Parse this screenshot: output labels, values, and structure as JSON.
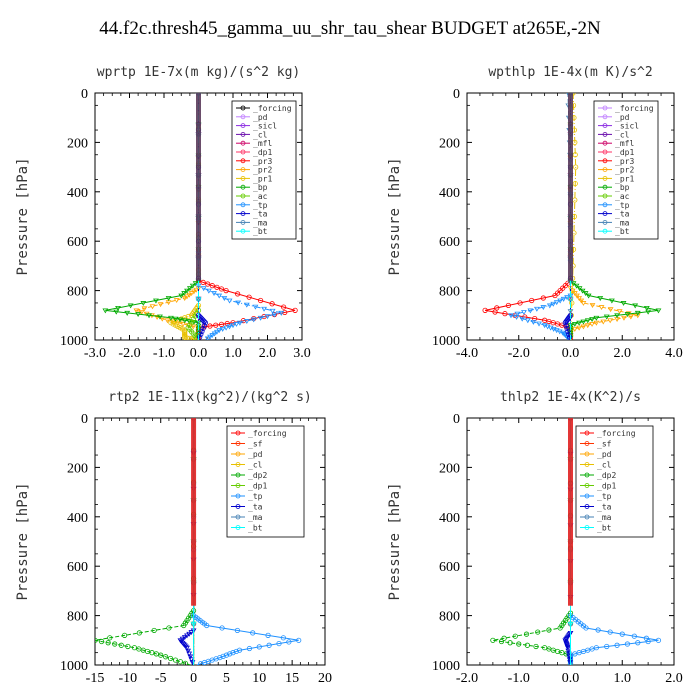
{
  "page_title": "44.f2c.thresh45_gamma_uu_shr_tau_shear  BUDGET at265E,-2N",
  "chart_data": [
    {
      "type": "line",
      "title": "wprtp  1E-7x(m kg)/(s^2 kg)",
      "ylabel": "Pressure [hPa]",
      "xlim": [
        -3.0,
        3.0
      ],
      "ylim": [
        1000,
        0
      ],
      "xticks": [
        -3.0,
        -2.0,
        -1.0,
        0.0,
        1.0,
        2.0,
        3.0
      ],
      "xtick_labels": [
        "-3.0",
        "-2.0",
        "-1.0",
        "0.0",
        "1.0",
        "2.0",
        "3.0"
      ],
      "yticks": [
        0,
        200,
        400,
        600,
        800,
        1000
      ],
      "ytick_labels": [
        "0",
        "200",
        "400",
        "600",
        "800",
        "1000"
      ],
      "legend_position": "top-right",
      "series": [
        {
          "name": "_forcing",
          "color": "#000000",
          "x": [
            0.0,
            0.0
          ],
          "y": [
            0,
            1000
          ]
        },
        {
          "name": "_pd",
          "color": "#c080ff",
          "x": [
            0.0,
            0.0
          ],
          "y": [
            0,
            1000
          ]
        },
        {
          "name": "_sicl",
          "color": "#8a2be2",
          "x": [
            0.0,
            0.0
          ],
          "y": [
            0,
            1000
          ]
        },
        {
          "name": "_cl",
          "color": "#6a0dad",
          "x": [
            0.0,
            0.0
          ],
          "y": [
            0,
            1000
          ]
        },
        {
          "name": "_mfl",
          "color": "#cc0066",
          "x": [
            0.0,
            0.0
          ],
          "y": [
            0,
            1000
          ]
        },
        {
          "name": "_dp1",
          "color": "#ff3366",
          "x": [
            0.0,
            0.0
          ],
          "y": [
            0,
            1000
          ]
        },
        {
          "name": "_pr3",
          "color": "#ff0000",
          "x": [
            0.0,
            0.0,
            0.8,
            2.8,
            1.0,
            0.0,
            0.0
          ],
          "y": [
            0,
            760,
            800,
            880,
            930,
            950,
            1000
          ]
        },
        {
          "name": "_pr2",
          "color": "#ffa500",
          "x": [
            0.0,
            0.0,
            -0.4,
            -1.8,
            -0.9,
            0.0,
            0.0
          ],
          "y": [
            0,
            790,
            830,
            880,
            920,
            950,
            1000
          ]
        },
        {
          "name": "_pr1",
          "color": "#e8c000",
          "x": [
            0.0,
            0.0,
            -0.2,
            -0.8,
            -0.4,
            -0.4,
            0.0
          ],
          "y": [
            0,
            860,
            900,
            930,
            960,
            990,
            1000
          ]
        },
        {
          "name": "_bp",
          "color": "#00aa00",
          "x": [
            0.0,
            0.0,
            -0.5,
            -2.7,
            -0.8,
            0.0,
            0.0
          ],
          "y": [
            0,
            760,
            820,
            880,
            910,
            930,
            1000
          ]
        },
        {
          "name": "_ac",
          "color": "#66cc00",
          "x": [
            0.0,
            0.0,
            -0.3,
            0.0
          ],
          "y": [
            0,
            880,
            950,
            1000
          ]
        },
        {
          "name": "_tp",
          "color": "#1e90ff",
          "x": [
            0.0,
            0.0,
            0.9,
            2.4,
            1.2,
            0.6,
            0.2
          ],
          "y": [
            0,
            780,
            840,
            890,
            930,
            960,
            1000
          ]
        },
        {
          "name": "_ta",
          "color": "#0000cc",
          "x": [
            0.0,
            0.0,
            0.2,
            0.0
          ],
          "y": [
            0,
            900,
            930,
            1000
          ]
        },
        {
          "name": "_ma",
          "color": "#4682b4",
          "x": [
            0.0,
            0.0
          ],
          "y": [
            0,
            1000
          ]
        },
        {
          "name": "_bt",
          "color": "#00ffff",
          "x": [
            0.0,
            0.0
          ],
          "y": [
            0,
            1000
          ]
        }
      ]
    },
    {
      "type": "line",
      "title": "wpthlp  1E-4x(m K)/s^2",
      "ylabel": "Pressure [hPa]",
      "xlim": [
        -4.0,
        4.0
      ],
      "ylim": [
        1000,
        0
      ],
      "xticks": [
        -4.0,
        -2.0,
        0.0,
        2.0,
        4.0
      ],
      "xtick_labels": [
        "-4.0",
        "-2.0",
        "0.0",
        "2.0",
        "4.0"
      ],
      "yticks": [
        0,
        200,
        400,
        600,
        800,
        1000
      ],
      "ytick_labels": [
        "0",
        "200",
        "400",
        "600",
        "800",
        "1000"
      ],
      "legend_position": "top-right",
      "series": [
        {
          "name": "_forcing",
          "color": "#c080ff",
          "x": [
            0.0,
            0.0
          ],
          "y": [
            0,
            1000
          ]
        },
        {
          "name": "_pd",
          "color": "#c080ff",
          "x": [
            0.0,
            0.0
          ],
          "y": [
            0,
            1000
          ]
        },
        {
          "name": "_sicl",
          "color": "#8a2be2",
          "x": [
            0.0,
            0.0
          ],
          "y": [
            0,
            1000
          ]
        },
        {
          "name": "_cl",
          "color": "#6a0dad",
          "x": [
            0.0,
            0.0
          ],
          "y": [
            0,
            1000
          ]
        },
        {
          "name": "_mfl",
          "color": "#cc0066",
          "x": [
            0.0,
            0.0
          ],
          "y": [
            0,
            1000
          ]
        },
        {
          "name": "_dp1",
          "color": "#ff3366",
          "x": [
            0.0,
            0.0
          ],
          "y": [
            0,
            1000
          ]
        },
        {
          "name": "_pr3",
          "color": "#ff0000",
          "x": [
            0.0,
            0.0,
            -0.6,
            -3.3,
            -1.0,
            0.0,
            0.0
          ],
          "y": [
            0,
            760,
            820,
            880,
            920,
            950,
            1000
          ]
        },
        {
          "name": "_pr2",
          "color": "#ffa500",
          "x": [
            0.0,
            0.0,
            0.5,
            2.6,
            1.0,
            0.0,
            0.0
          ],
          "y": [
            0,
            790,
            850,
            900,
            930,
            960,
            1000
          ]
        },
        {
          "name": "_pr1",
          "color": "#e8c000",
          "x": [
            0.1,
            0.2,
            0.1,
            0.0
          ],
          "y": [
            0,
            300,
            700,
            1000
          ]
        },
        {
          "name": "_bp",
          "color": "#00aa00",
          "x": [
            0.0,
            0.0,
            0.7,
            3.4,
            1.0,
            0.0,
            0.0
          ],
          "y": [
            0,
            760,
            820,
            880,
            910,
            940,
            1000
          ]
        },
        {
          "name": "_ac",
          "color": "#66cc00",
          "x": [
            0.0,
            0.0
          ],
          "y": [
            0,
            1000
          ]
        },
        {
          "name": "_tp",
          "color": "#1e90ff",
          "x": [
            0.0,
            0.0,
            -0.8,
            -2.3,
            -1.0,
            -0.3,
            0.0
          ],
          "y": [
            0,
            820,
            860,
            900,
            940,
            970,
            1000
          ]
        },
        {
          "name": "_ta",
          "color": "#0000cc",
          "x": [
            0.0,
            0.0,
            -0.2,
            0.0
          ],
          "y": [
            0,
            900,
            930,
            1000
          ]
        },
        {
          "name": "_ma",
          "color": "#4682b4",
          "x": [
            -0.1,
            0.0,
            0.0
          ],
          "y": [
            0,
            300,
            1000
          ]
        },
        {
          "name": "_bt",
          "color": "#00ffff",
          "x": [
            0.0,
            0.0
          ],
          "y": [
            0,
            1000
          ]
        }
      ]
    },
    {
      "type": "line",
      "title": "rtp2  1E-11x(kg^2)/(kg^2 s)",
      "ylabel": "Pressure [hPa]",
      "xlim": [
        -15,
        20
      ],
      "ylim": [
        1000,
        0
      ],
      "xticks": [
        -15,
        -10,
        -5,
        0,
        5,
        10,
        15,
        20
      ],
      "xtick_labels": [
        "-15",
        "-10",
        "-5",
        "0",
        "5",
        "10",
        "15",
        "20"
      ],
      "yticks": [
        0,
        200,
        400,
        600,
        800,
        1000
      ],
      "ytick_labels": [
        "0",
        "200",
        "400",
        "600",
        "800",
        "1000"
      ],
      "legend_position": "top-right",
      "series": [
        {
          "name": "_forcing",
          "color": "#ff0000",
          "x": [
            0.0,
            0.0
          ],
          "y": [
            0,
            1000
          ]
        },
        {
          "name": "_sf",
          "color": "#ff3300",
          "x": [
            0.0,
            0.0
          ],
          "y": [
            0,
            1000
          ]
        },
        {
          "name": "_pd",
          "color": "#ffa500",
          "x": [
            0.0,
            0.0
          ],
          "y": [
            0,
            1000
          ]
        },
        {
          "name": "_cl",
          "color": "#e8c000",
          "x": [
            0.0,
            0.0
          ],
          "y": [
            0,
            1000
          ]
        },
        {
          "name": "_dp2",
          "color": "#00aa00",
          "x": [
            0.0,
            0.0,
            -1.5,
            -15.0,
            -9.0,
            -5.0,
            -0.5
          ],
          "y": [
            0,
            780,
            840,
            900,
            930,
            960,
            1000
          ]
        },
        {
          "name": "_dp1",
          "color": "#66cc00",
          "x": [
            0.0,
            0.0
          ],
          "y": [
            0,
            1000
          ]
        },
        {
          "name": "_tp",
          "color": "#1e90ff",
          "x": [
            0.0,
            0.0,
            2.0,
            16.0,
            7.0,
            4.0,
            0.5
          ],
          "y": [
            0,
            800,
            840,
            900,
            940,
            970,
            1000
          ]
        },
        {
          "name": "_ta",
          "color": "#0000cc",
          "x": [
            0.0,
            0.0,
            -2.0,
            -1.0,
            0.0
          ],
          "y": [
            0,
            860,
            900,
            930,
            1000
          ]
        },
        {
          "name": "_ma",
          "color": "#4682b4",
          "x": [
            0.0,
            0.0
          ],
          "y": [
            0,
            1000
          ]
        },
        {
          "name": "_bt",
          "color": "#00ffff",
          "x": [
            0.0,
            0.0
          ],
          "y": [
            0,
            1000
          ]
        }
      ]
    },
    {
      "type": "line",
      "title": "thlp2  1E-4x(K^2)/s",
      "ylabel": "Pressure [hPa]",
      "xlim": [
        -2.0,
        2.0
      ],
      "ylim": [
        1000,
        0
      ],
      "xticks": [
        -2.0,
        -1.0,
        0.0,
        1.0,
        2.0
      ],
      "xtick_labels": [
        "-2.0",
        "-1.0",
        "0.0",
        "1.0",
        "2.0"
      ],
      "yticks": [
        0,
        200,
        400,
        600,
        800,
        1000
      ],
      "ytick_labels": [
        "0",
        "200",
        "400",
        "600",
        "800",
        "1000"
      ],
      "legend_position": "top-right",
      "series": [
        {
          "name": "_forcing",
          "color": "#ff0000",
          "x": [
            0.0,
            0.0
          ],
          "y": [
            0,
            1000
          ]
        },
        {
          "name": "_sf",
          "color": "#ff3300",
          "x": [
            0.0,
            0.0
          ],
          "y": [
            0,
            1000
          ]
        },
        {
          "name": "_pd",
          "color": "#ffa500",
          "x": [
            0.0,
            0.0
          ],
          "y": [
            0,
            1000
          ]
        },
        {
          "name": "_cl",
          "color": "#e8c000",
          "x": [
            0.0,
            0.0
          ],
          "y": [
            0,
            1000
          ]
        },
        {
          "name": "_dp2",
          "color": "#00aa00",
          "x": [
            0.0,
            0.0,
            -0.2,
            -1.5,
            -0.5,
            0.0,
            0.0
          ],
          "y": [
            0,
            790,
            850,
            900,
            930,
            960,
            1000
          ]
        },
        {
          "name": "_dp1",
          "color": "#66cc00",
          "x": [
            0.0,
            0.0
          ],
          "y": [
            0,
            1000
          ]
        },
        {
          "name": "_tp",
          "color": "#1e90ff",
          "x": [
            0.0,
            0.0,
            0.3,
            1.7,
            0.5,
            0.0,
            0.0
          ],
          "y": [
            0,
            800,
            850,
            900,
            930,
            960,
            1000
          ]
        },
        {
          "name": "_ta",
          "color": "#0000cc",
          "x": [
            0.0,
            0.0,
            -0.1,
            -0.05,
            0.0
          ],
          "y": [
            0,
            870,
            900,
            930,
            1000
          ]
        },
        {
          "name": "_ma",
          "color": "#4682b4",
          "x": [
            0.0,
            0.0
          ],
          "y": [
            0,
            1000
          ]
        },
        {
          "name": "_bt",
          "color": "#00ffff",
          "x": [
            0.0,
            0.0
          ],
          "y": [
            0,
            1000
          ]
        }
      ]
    }
  ]
}
